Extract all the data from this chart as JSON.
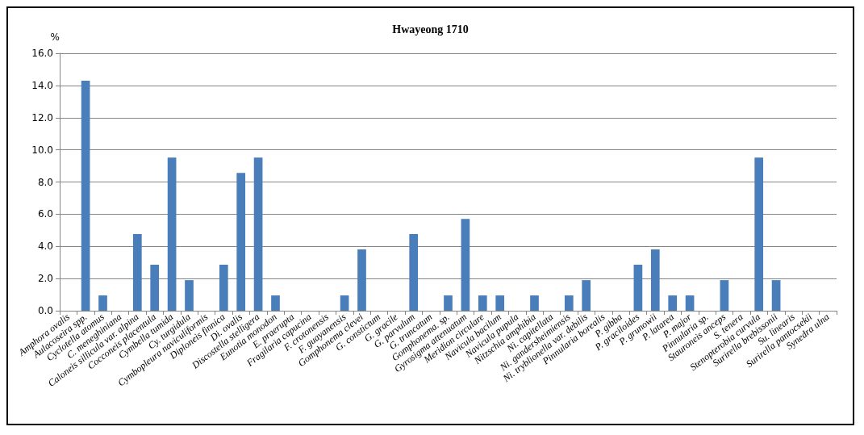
{
  "chart_data": {
    "type": "bar",
    "title": "Hwayeong 1710",
    "ylabel": "%",
    "categories": [
      "Amphora ovalis",
      "Aulacoseira spp.",
      "Cyclotella atomus",
      "C. meneghiniana",
      "Caloneis sillicula var. alpina",
      "Cocconeis placentula",
      "Cymbella tumida",
      "Cy. turgidula",
      "Cymbopleura naviculiformis",
      "Diploneis finnica",
      "Di. ovalis",
      "Discostella stelligera",
      "Eunotia monodon",
      "E. praerupta",
      "Fragilaria capucina",
      "F. crotonensis",
      "F. guayanensis",
      "Gomphonema clevei",
      "G. constictum",
      "G. gracile",
      "G. parvulum",
      "G. truncatum",
      "Gomphonema. sp.",
      "Gyrosigma attenuatum",
      "Meridion circulare",
      "Navicula bacilum",
      "Navicula pupula",
      "Nitzschia amphibia",
      "Ni. capitellata",
      "Ni. gandersheimiensis",
      "Ni. tryblionella var. debilis",
      "Pinnularia borealis",
      "P. gibba",
      "P. graciloides",
      "P. grunowii",
      "P. latarea",
      "P. major",
      "Pinnularia sp.",
      "Stauroneis anceps",
      "S. tenera",
      "Stenopterobia curvula",
      "Surirella brebissonii",
      "Su. linearis",
      "Surirella pantocsekii",
      "Synedra ulna"
    ],
    "values": [
      0,
      14.3,
      0.95,
      0,
      4.76,
      2.86,
      9.52,
      1.9,
      0,
      2.86,
      8.57,
      9.52,
      0.95,
      0,
      0,
      0,
      0.95,
      3.81,
      0,
      0,
      4.76,
      0,
      0.95,
      5.71,
      0.95,
      0.95,
      0,
      0.95,
      0,
      0.95,
      1.9,
      0,
      0,
      2.86,
      3.81,
      0.95,
      0.95,
      0,
      1.9,
      0,
      9.52,
      1.9,
      0,
      0,
      0
    ],
    "color": "#4a7ebb",
    "ylim": [
      0,
      16
    ],
    "yticks": [
      {
        "value": 0,
        "label": "0.0"
      },
      {
        "value": 2,
        "label": "2.0"
      },
      {
        "value": 4,
        "label": "4.0"
      },
      {
        "value": 6,
        "label": "6.0"
      },
      {
        "value": 8,
        "label": "8.0"
      },
      {
        "value": 10,
        "label": "10.0"
      },
      {
        "value": 12,
        "label": "12.0"
      },
      {
        "value": 14,
        "label": "14.0"
      },
      {
        "value": 16,
        "label": "16.0"
      }
    ],
    "grid": "y"
  }
}
